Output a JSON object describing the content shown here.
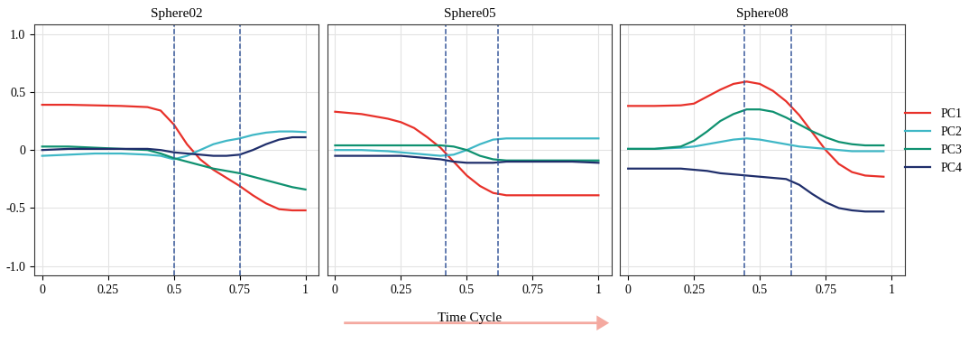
{
  "chart_data": [
    {
      "type": "line",
      "title": "Sphere02",
      "x": [
        0,
        0.1,
        0.2,
        0.3,
        0.4,
        0.45,
        0.5,
        0.55,
        0.6,
        0.65,
        0.7,
        0.75,
        0.8,
        0.85,
        0.9,
        0.95,
        1.0
      ],
      "series": [
        {
          "name": "PC1",
          "color": "#e8312a",
          "values": [
            0.39,
            0.39,
            0.385,
            0.38,
            0.37,
            0.34,
            0.22,
            0.05,
            -0.08,
            -0.17,
            -0.24,
            -0.31,
            -0.39,
            -0.46,
            -0.51,
            -0.52,
            -0.52
          ]
        },
        {
          "name": "PC2",
          "color": "#3fb7c6",
          "values": [
            -0.05,
            -0.04,
            -0.03,
            -0.03,
            -0.04,
            -0.05,
            -0.08,
            -0.05,
            0.0,
            0.05,
            0.08,
            0.1,
            0.13,
            0.15,
            0.16,
            0.16,
            0.155
          ]
        },
        {
          "name": "PC3",
          "color": "#0f9170",
          "values": [
            0.03,
            0.03,
            0.02,
            0.01,
            0.0,
            -0.03,
            -0.07,
            -0.1,
            -0.13,
            -0.16,
            -0.18,
            -0.2,
            -0.23,
            -0.26,
            -0.29,
            -0.32,
            -0.34
          ]
        },
        {
          "name": "PC4",
          "color": "#1f2e6b",
          "values": [
            0.0,
            0.01,
            0.01,
            0.01,
            0.01,
            0.0,
            -0.02,
            -0.03,
            -0.04,
            -0.05,
            -0.05,
            -0.04,
            0.0,
            0.05,
            0.09,
            0.11,
            0.11
          ]
        }
      ],
      "vlines": [
        0.5,
        0.75
      ],
      "xlim": [
        -0.03,
        1.05
      ],
      "ylim": [
        -1.08,
        1.08
      ],
      "xticks": [
        0,
        0.25,
        0.5,
        0.75,
        1
      ],
      "yticks": [
        {
          "value": -1.0,
          "label": "-1.0"
        },
        {
          "value": -0.5,
          "label": "-0.5"
        },
        0,
        {
          "value": 0.5,
          "label": "0.5"
        },
        {
          "value": 1.0,
          "label": "1.0"
        }
      ],
      "grid": true
    },
    {
      "type": "line",
      "title": "Sphere05",
      "x": [
        0,
        0.1,
        0.2,
        0.25,
        0.3,
        0.35,
        0.4,
        0.45,
        0.5,
        0.55,
        0.6,
        0.65,
        0.7,
        0.8,
        0.9,
        1.0
      ],
      "series": [
        {
          "name": "PC1",
          "color": "#e8312a",
          "values": [
            0.33,
            0.31,
            0.27,
            0.24,
            0.19,
            0.11,
            0.02,
            -0.1,
            -0.22,
            -0.31,
            -0.37,
            -0.39,
            -0.39,
            -0.39,
            -0.39,
            -0.39
          ]
        },
        {
          "name": "PC2",
          "color": "#3fb7c6",
          "values": [
            0.0,
            0.0,
            -0.01,
            -0.02,
            -0.03,
            -0.04,
            -0.05,
            -0.04,
            0.0,
            0.05,
            0.09,
            0.1,
            0.1,
            0.1,
            0.1,
            0.1
          ]
        },
        {
          "name": "PC3",
          "color": "#0f9170",
          "values": [
            0.04,
            0.04,
            0.04,
            0.04,
            0.04,
            0.04,
            0.04,
            0.03,
            0.0,
            -0.05,
            -0.08,
            -0.09,
            -0.09,
            -0.09,
            -0.09,
            -0.09
          ]
        },
        {
          "name": "PC4",
          "color": "#1f2e6b",
          "values": [
            -0.05,
            -0.05,
            -0.05,
            -0.05,
            -0.06,
            -0.07,
            -0.08,
            -0.1,
            -0.11,
            -0.11,
            -0.11,
            -0.1,
            -0.1,
            -0.1,
            -0.1,
            -0.11
          ]
        }
      ],
      "vlines": [
        0.42,
        0.62
      ],
      "annotations": [
        "Time Cycle"
      ],
      "xlim": [
        -0.03,
        1.05
      ],
      "ylim": [
        -1.08,
        1.08
      ],
      "xticks": [
        0,
        0.25,
        0.5,
        0.75,
        1
      ],
      "yticks": [
        {
          "value": -1.0,
          "label": "-1.0"
        },
        {
          "value": -0.5,
          "label": "-0.5"
        },
        0,
        {
          "value": 0.5,
          "label": "0.5"
        },
        {
          "value": 1.0,
          "label": "1.0"
        }
      ],
      "tick_labels": "x",
      "grid": true
    },
    {
      "type": "line",
      "title": "Sphere08",
      "x": [
        0,
        0.1,
        0.2,
        0.25,
        0.3,
        0.35,
        0.4,
        0.45,
        0.5,
        0.55,
        0.6,
        0.65,
        0.7,
        0.75,
        0.8,
        0.85,
        0.9,
        0.97
      ],
      "series": [
        {
          "name": "PC1",
          "color": "#e8312a",
          "values": [
            0.38,
            0.38,
            0.385,
            0.4,
            0.46,
            0.52,
            0.57,
            0.59,
            0.57,
            0.51,
            0.42,
            0.3,
            0.15,
            0.0,
            -0.12,
            -0.19,
            -0.22,
            -0.23
          ]
        },
        {
          "name": "PC2",
          "color": "#3fb7c6",
          "values": [
            0.01,
            0.01,
            0.02,
            0.03,
            0.05,
            0.07,
            0.09,
            0.1,
            0.09,
            0.07,
            0.05,
            0.03,
            0.02,
            0.01,
            0.0,
            -0.01,
            -0.01,
            -0.01
          ]
        },
        {
          "name": "PC3",
          "color": "#0f9170",
          "values": [
            0.01,
            0.01,
            0.03,
            0.08,
            0.16,
            0.25,
            0.31,
            0.35,
            0.35,
            0.33,
            0.28,
            0.22,
            0.16,
            0.11,
            0.07,
            0.05,
            0.04,
            0.04
          ]
        },
        {
          "name": "PC4",
          "color": "#1f2e6b",
          "values": [
            -0.16,
            -0.16,
            -0.16,
            -0.17,
            -0.18,
            -0.2,
            -0.21,
            -0.22,
            -0.23,
            -0.24,
            -0.25,
            -0.3,
            -0.38,
            -0.45,
            -0.5,
            -0.52,
            -0.53,
            -0.53
          ]
        }
      ],
      "vlines": [
        0.44,
        0.62
      ],
      "xlim": [
        -0.03,
        1.05
      ],
      "ylim": [
        -1.08,
        1.08
      ],
      "xticks": [
        0,
        0.25,
        0.5,
        0.75,
        1
      ],
      "yticks": [
        {
          "value": -1.0,
          "label": "-1.0"
        },
        {
          "value": -0.5,
          "label": "-0.5"
        },
        0,
        {
          "value": 0.5,
          "label": "0.5"
        },
        {
          "value": 1.0,
          "label": "1.0"
        }
      ],
      "tick_labels": "x",
      "grid": true,
      "legend": "center right"
    }
  ]
}
